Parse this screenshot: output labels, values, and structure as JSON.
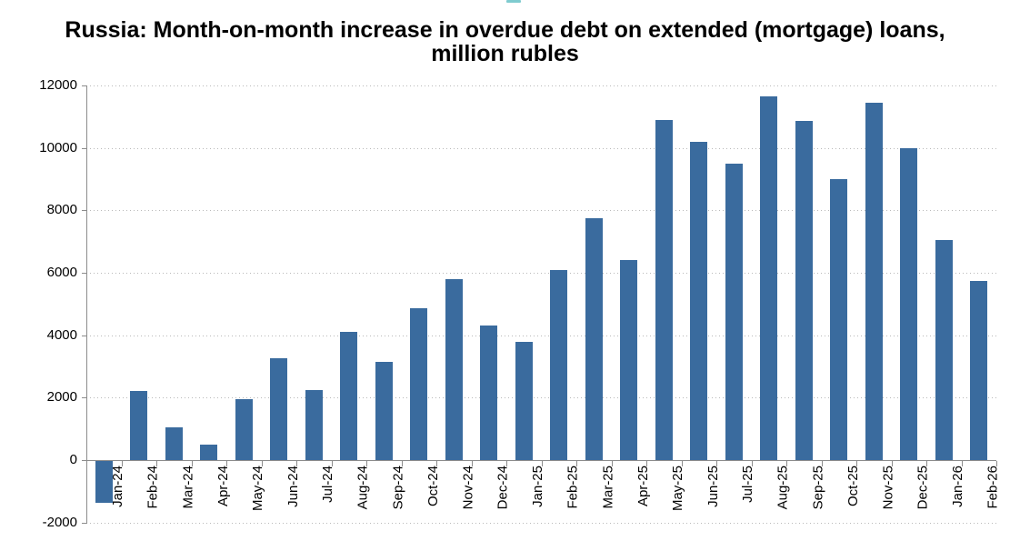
{
  "title": {
    "line1": "Russia: Month-on-month increase in overdue debt on extended (mortgage) loans,",
    "line2": "million rubles"
  },
  "colors": {
    "bar": "#3A6B9E",
    "axis": "#8C8C8C",
    "gridline": "#B9B9B9",
    "text": "#000000",
    "top_artifact_teal": "#5FBEC3"
  },
  "chart_data": {
    "type": "bar",
    "title": "Russia: Month-on-month increase in overdue debt on extended (mortgage) loans, million rubles",
    "xlabel": "",
    "ylabel": "",
    "ylim": [
      -2000,
      12000
    ],
    "yticks": [
      12000,
      10000,
      8000,
      6000,
      4000,
      2000,
      0,
      -2000
    ],
    "grid": "dotted horizontal gridlines at every 2000",
    "legend": "none",
    "bar_color": "#3A6B9E",
    "categories": [
      "Jan-24",
      "Feb-24",
      "Mar-24",
      "Apr-24",
      "May-24",
      "Jun-24",
      "Jul-24",
      "Aug-24",
      "Sep-24",
      "Oct-24",
      "Nov-24",
      "Dec-24",
      "Jan-25",
      "Feb-25",
      "Mar-25",
      "Apr-25",
      "May-25",
      "Jun-25",
      "Jul-25",
      "Aug-25",
      "Sep-25",
      "Oct-25",
      "Nov-25",
      "Dec-25",
      "Jan-26",
      "Feb-26"
    ],
    "values": [
      -1350,
      2200,
      1050,
      500,
      1950,
      3250,
      2250,
      4100,
      3150,
      4850,
      5800,
      4300,
      3800,
      6100,
      7750,
      6400,
      10900,
      10200,
      9500,
      11650,
      10850,
      9000,
      11450,
      10000,
      7050,
      5750
    ]
  }
}
